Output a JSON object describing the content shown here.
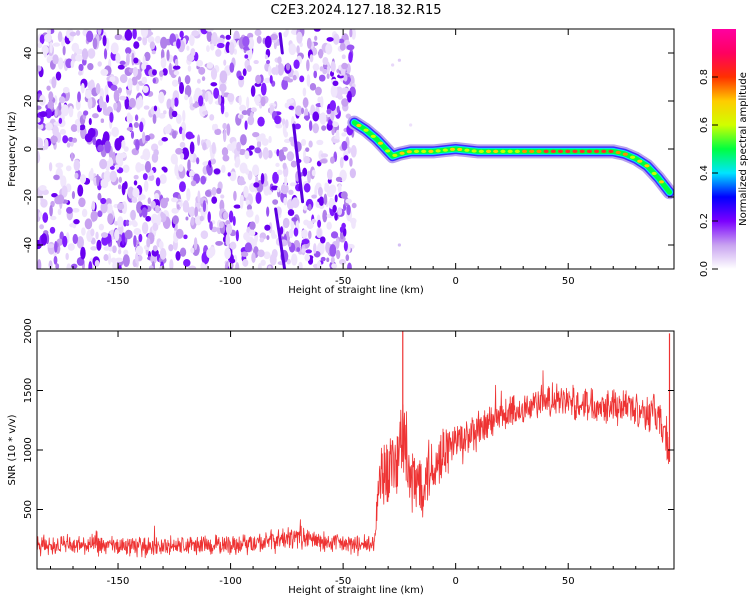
{
  "figure": {
    "title": "C2E3.2024.127.18.32.R15"
  },
  "chart_data": [
    {
      "type": "heatmap",
      "xlabel": "Height of straight line (km)",
      "ylabel": "Frequency (Hz)",
      "xlim": [
        -186,
        97
      ],
      "ylim": [
        -50,
        50
      ],
      "xticks": [
        -150,
        -100,
        -50,
        0,
        50
      ],
      "yticks": [
        -40,
        -20,
        0,
        20,
        40
      ],
      "noise_region": {
        "x": [
          -186,
          -45
        ],
        "y": [
          -50,
          50
        ]
      },
      "ridge": {
        "x": [
          -45,
          -40,
          -35,
          -30,
          -28,
          -25,
          -20,
          -10,
          0,
          10,
          20,
          30,
          40,
          50,
          60,
          70,
          75,
          80,
          85,
          90,
          95
        ],
        "y": [
          11,
          8,
          4,
          -1,
          -3,
          -2,
          -1,
          -1,
          0,
          -1,
          -1,
          -1,
          -1,
          -1,
          -1,
          -1,
          -2,
          -4,
          -7,
          -12,
          -18
        ]
      },
      "colorbar": {
        "label": "Normalized spectral amplitude",
        "range": [
          0.0,
          1.0
        ],
        "ticks": [
          "0.0",
          "0.2",
          "0.4",
          "0.6",
          "0.8"
        ],
        "colors": [
          "#ffffff",
          "#c8a2f0",
          "#7b00ff",
          "#0000ff",
          "#00e5ff",
          "#00ff40",
          "#d0ff00",
          "#ffcc00",
          "#ff3000",
          "#ff0060",
          "#ff00a0"
        ]
      },
      "grid": false
    },
    {
      "type": "line",
      "xlabel": "Height of straight line (km)",
      "ylabel": "SNR (10 * v/v)",
      "xlim": [
        -186,
        97
      ],
      "ylim": [
        0,
        2000
      ],
      "xticks": [
        -150,
        -100,
        -50,
        0,
        50
      ],
      "yticks": [
        500,
        1000,
        1500,
        2000
      ],
      "series": [
        {
          "color": "#ee3333",
          "x": [
            -186,
            -170,
            -150,
            -130,
            -110,
            -90,
            -80,
            -70,
            -60,
            -50,
            -45,
            -40,
            -36,
            -34,
            -30,
            -26,
            -24,
            -20,
            -15,
            -10,
            -5,
            0,
            10,
            20,
            30,
            40,
            50,
            60,
            70,
            80,
            90,
            95
          ],
          "y": [
            200,
            200,
            190,
            190,
            200,
            210,
            240,
            270,
            230,
            210,
            200,
            200,
            200,
            800,
            850,
            900,
            1150,
            700,
            750,
            850,
            1000,
            1050,
            1150,
            1280,
            1350,
            1420,
            1400,
            1390,
            1380,
            1350,
            1300,
            1000
          ],
          "noise_amplitude": [
            70,
            70,
            70,
            70,
            70,
            70,
            80,
            80,
            70,
            70,
            70,
            70,
            70,
            220,
            280,
            300,
            320,
            300,
            250,
            220,
            200,
            180,
            140,
            130,
            120,
            120,
            120,
            120,
            130,
            130,
            140,
            200
          ],
          "spikes": [
            {
              "x": -23.5,
              "y": 2000
            },
            {
              "x": 95,
              "y": 1980
            }
          ]
        }
      ],
      "grid": false
    }
  ]
}
